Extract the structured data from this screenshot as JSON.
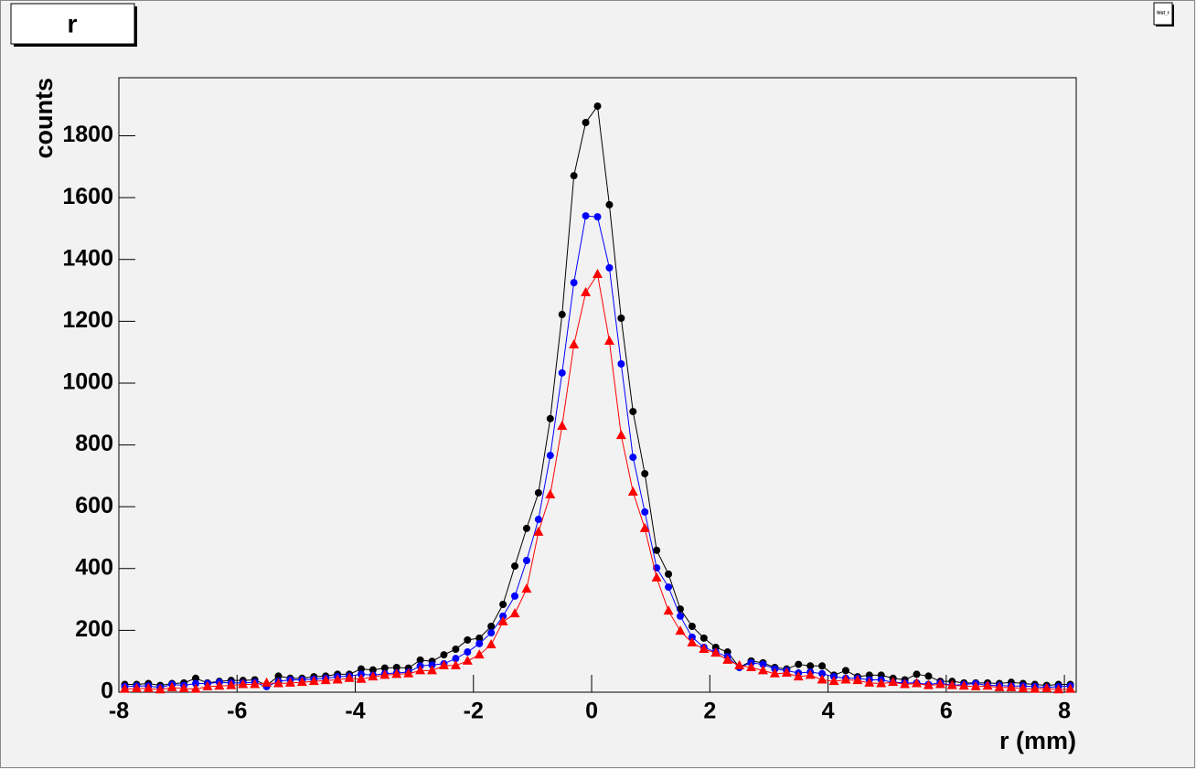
{
  "chart_data": {
    "type": "line",
    "title": "r",
    "canvas_label": "hist_r",
    "x_label": "r (mm)",
    "y_label": "counts",
    "xlim": [
      -8,
      8.2
    ],
    "ylim": [
      0,
      1988
    ],
    "xticks": [
      -8,
      -6,
      -4,
      -2,
      0,
      2,
      4,
      6,
      8
    ],
    "yticks": [
      0,
      200,
      400,
      600,
      800,
      1000,
      1200,
      1400,
      1600,
      1800
    ],
    "grid": false,
    "x": [
      -7.9,
      -7.7,
      -7.5,
      -7.3,
      -7.1,
      -6.9,
      -6.7,
      -6.5,
      -6.3,
      -6.1,
      -5.9,
      -5.7,
      -5.5,
      -5.3,
      -5.1,
      -4.9,
      -4.7,
      -4.5,
      -4.3,
      -4.1,
      -3.9,
      -3.7,
      -3.5,
      -3.3,
      -3.1,
      -2.9,
      -2.7,
      -2.5,
      -2.3,
      -2.1,
      -1.9,
      -1.7,
      -1.5,
      -1.3,
      -1.1,
      -0.9,
      -0.7,
      -0.5,
      -0.3,
      -0.1,
      0.1,
      0.3,
      0.5,
      0.7,
      0.9,
      1.1,
      1.3,
      1.5,
      1.7,
      1.9,
      2.1,
      2.3,
      2.5,
      2.7,
      2.9,
      3.1,
      3.3,
      3.5,
      3.7,
      3.9,
      4.1,
      4.3,
      4.5,
      4.7,
      4.9,
      5.1,
      5.3,
      5.5,
      5.7,
      5.9,
      6.1,
      6.3,
      6.5,
      6.7,
      6.9,
      7.1,
      7.3,
      7.5,
      7.7,
      7.9,
      8.1
    ],
    "series": [
      {
        "color": "#000000",
        "marker": "circle",
        "values": [
          25,
          25,
          28,
          22,
          28,
          30,
          45,
          30,
          35,
          38,
          38,
          40,
          22,
          52,
          45,
          45,
          50,
          52,
          58,
          58,
          75,
          72,
          78,
          80,
          78,
          104,
          100,
          121,
          139,
          169,
          175,
          213,
          284,
          408,
          530,
          645,
          885,
          1222,
          1671,
          1843,
          1896,
          1577,
          1210,
          908,
          707,
          459,
          382,
          269,
          213,
          175,
          145,
          130,
          80,
          101,
          95,
          80,
          75,
          90,
          85,
          85,
          55,
          70,
          50,
          55,
          55,
          45,
          40,
          58,
          52,
          35,
          35,
          30,
          30,
          30,
          28,
          32,
          28,
          25,
          22,
          25,
          25
        ]
      },
      {
        "color": "#0000ff",
        "marker": "circle",
        "values": [
          18,
          20,
          20,
          15,
          25,
          22,
          28,
          28,
          32,
          30,
          30,
          32,
          18,
          35,
          40,
          40,
          42,
          45,
          50,
          52,
          58,
          55,
          60,
          62,
          65,
          85,
          88,
          92,
          109,
          130,
          157,
          192,
          246,
          311,
          426,
          559,
          766,
          1033,
          1325,
          1541,
          1538,
          1373,
          1062,
          760,
          583,
          402,
          340,
          246,
          178,
          145,
          130,
          115,
          80,
          95,
          90,
          75,
          70,
          62,
          65,
          60,
          50,
          45,
          45,
          40,
          40,
          32,
          30,
          30,
          25,
          30,
          22,
          25,
          28,
          22,
          22,
          20,
          20,
          18,
          15,
          18,
          20
        ]
      },
      {
        "color": "#ff0000",
        "marker": "triangle",
        "values": [
          10,
          12,
          12,
          8,
          15,
          12,
          10,
          18,
          20,
          22,
          25,
          25,
          30,
          28,
          30,
          32,
          35,
          38,
          40,
          45,
          42,
          50,
          55,
          58,
          60,
          70,
          70,
          86,
          86,
          101,
          121,
          154,
          228,
          254,
          334,
          518,
          639,
          861,
          1124,
          1293,
          1352,
          1136,
          831,
          648,
          530,
          370,
          263,
          198,
          160,
          139,
          127,
          104,
          86,
          80,
          70,
          60,
          62,
          50,
          55,
          40,
          35,
          40,
          38,
          30,
          28,
          32,
          25,
          28,
          22,
          25,
          22,
          20,
          18,
          20,
          15,
          15,
          12,
          10,
          12,
          8,
          10
        ]
      }
    ]
  }
}
